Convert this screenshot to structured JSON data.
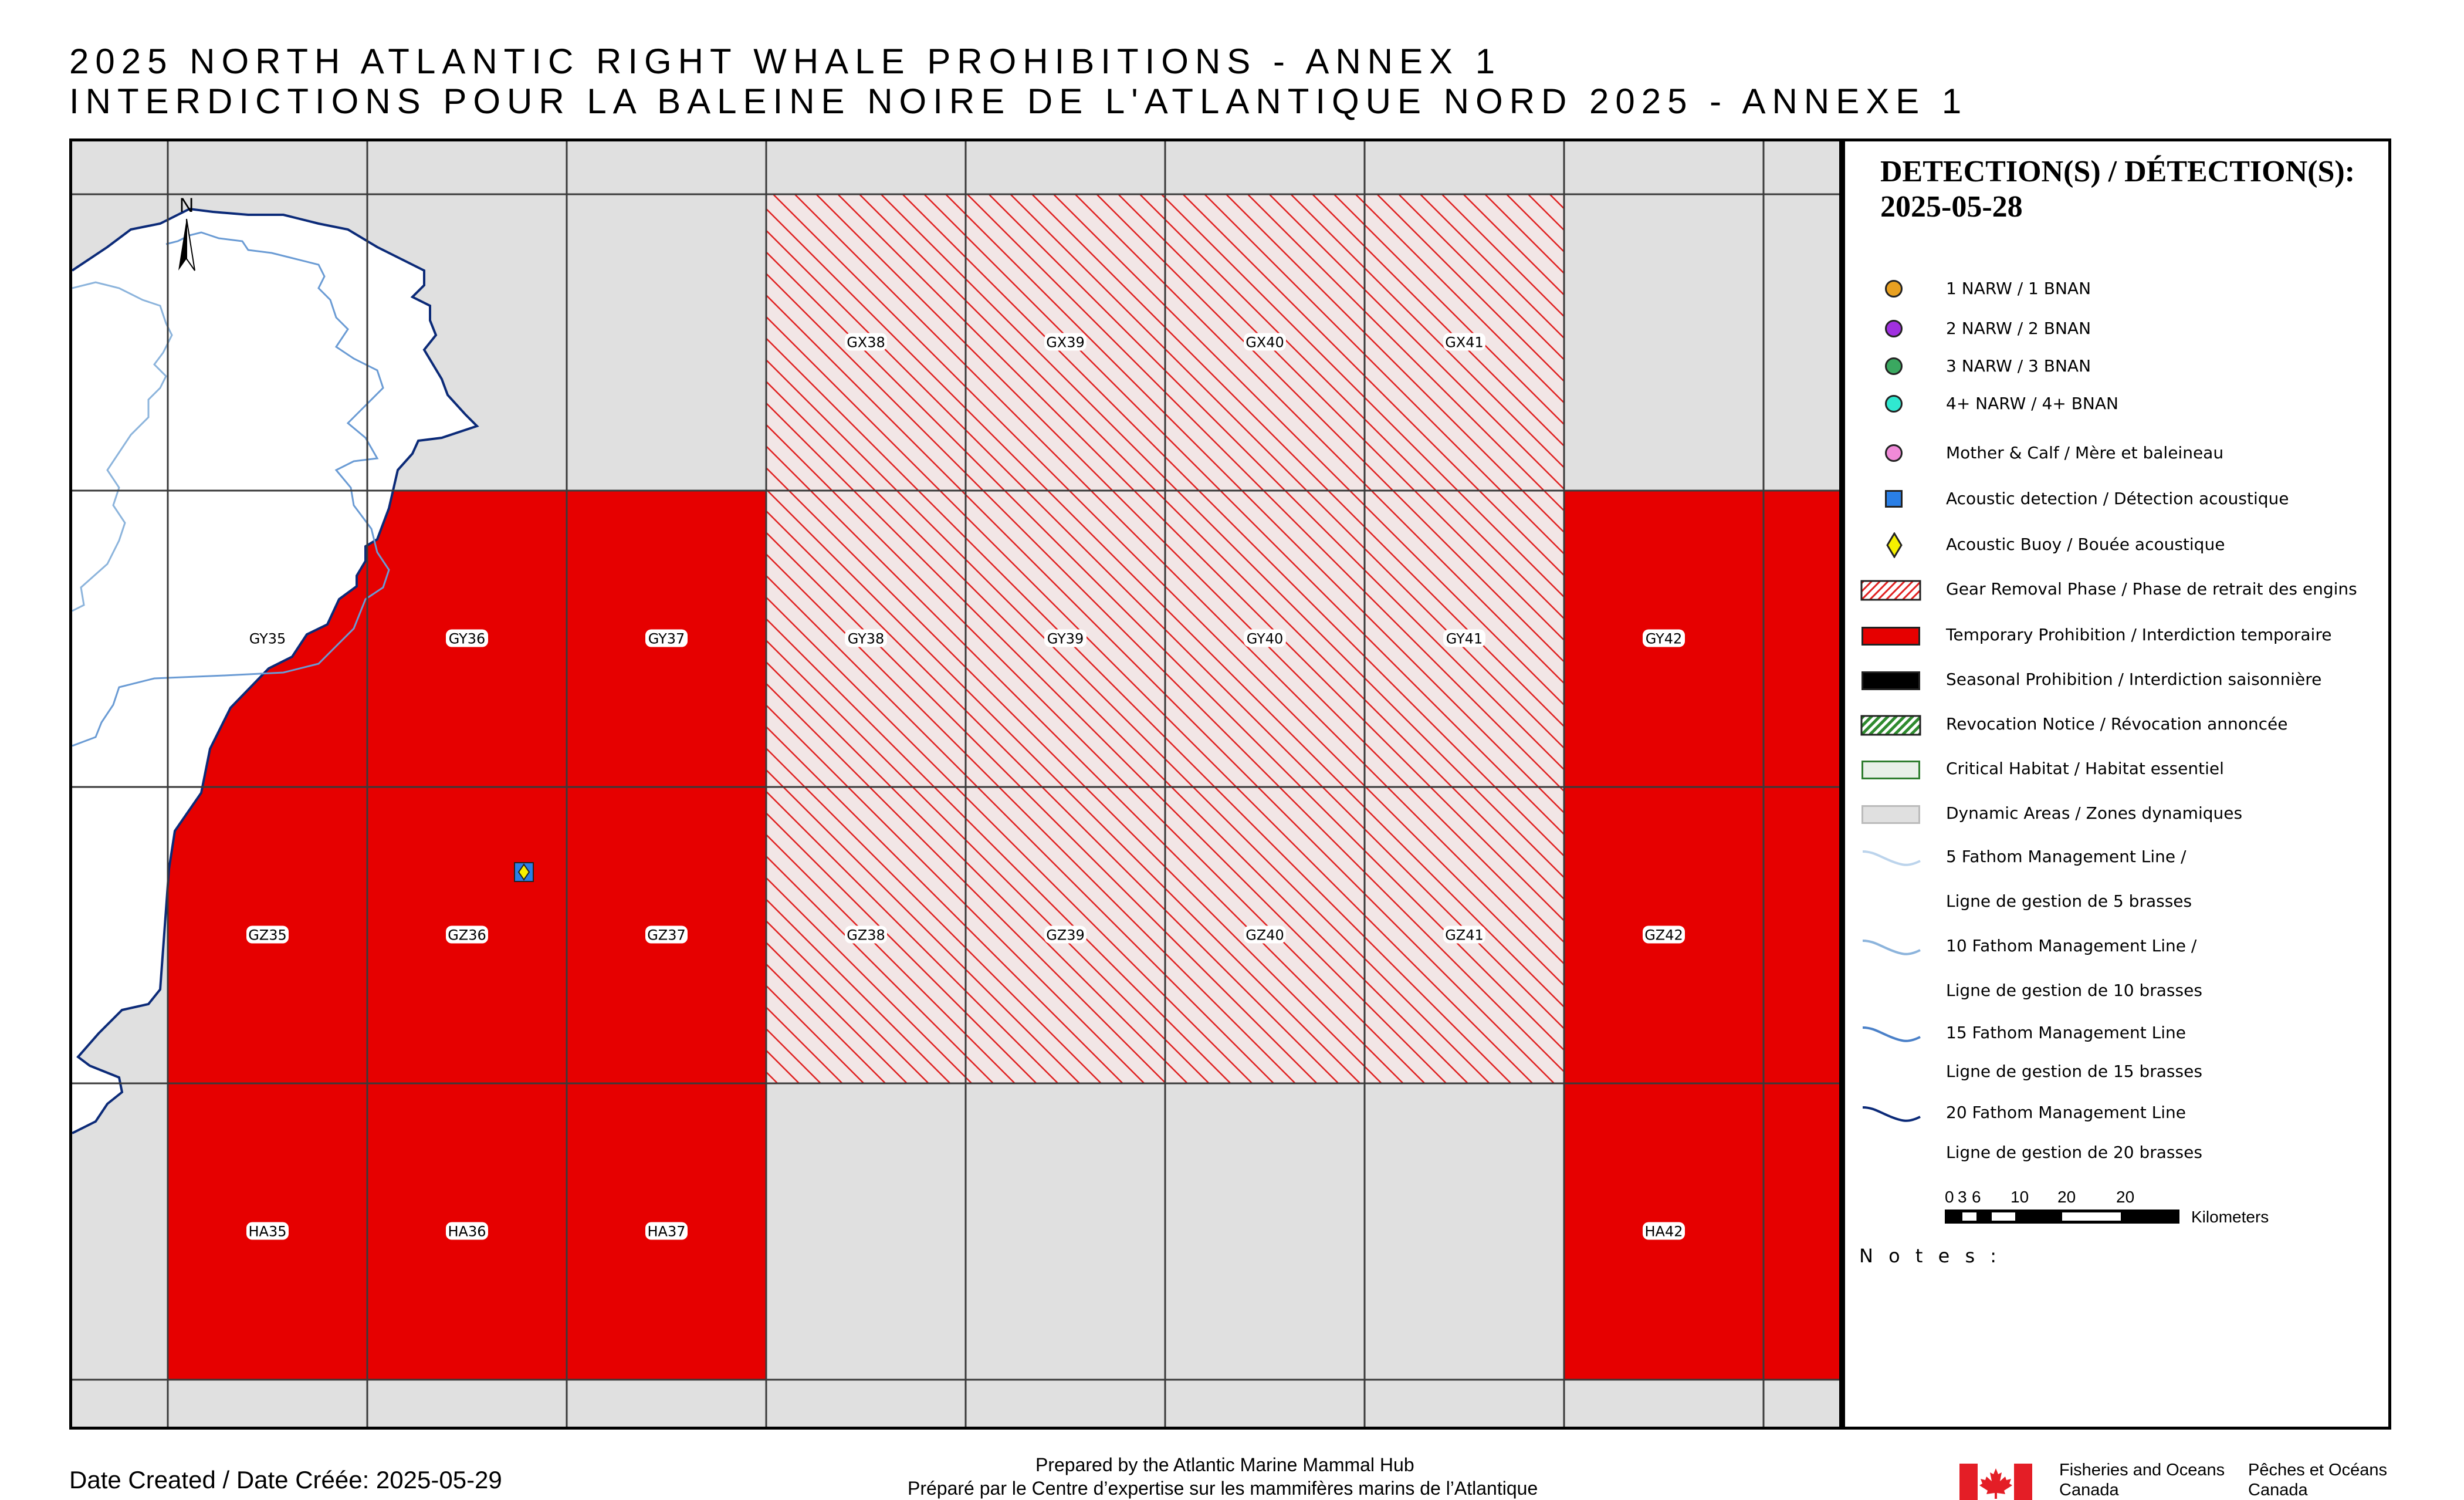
{
  "title": {
    "line1": "2025 NORTH ATLANTIC RIGHT WHALE PROHIBITIONS - ANNEX 1",
    "line2": "INTERDICTIONS POUR LA BALEINE NOIRE DE L'ATLANTIQUE NORD 2025 - ANNEXE 1"
  },
  "map": {
    "north_label": "N",
    "colors": {
      "background": "#e0e0e0",
      "temporary": "#e60000",
      "hatch": "#e02020",
      "grid": "#3a3a3a",
      "land": "#ffffff",
      "coast": "#0b2a78",
      "fathom": "#6a9bd4"
    },
    "cells": {
      "row_gx": [
        {
          "label": "GX38",
          "status": "gear_removal"
        },
        {
          "label": "GX39",
          "status": "gear_removal"
        },
        {
          "label": "GX40",
          "status": "gear_removal"
        },
        {
          "label": "GX41",
          "status": "gear_removal"
        }
      ],
      "row_gy": [
        {
          "label": "GY35",
          "status": "temporary"
        },
        {
          "label": "GY36",
          "status": "temporary"
        },
        {
          "label": "GY37",
          "status": "temporary"
        },
        {
          "label": "GY38",
          "status": "gear_removal"
        },
        {
          "label": "GY39",
          "status": "gear_removal"
        },
        {
          "label": "GY40",
          "status": "gear_removal"
        },
        {
          "label": "GY41",
          "status": "gear_removal"
        },
        {
          "label": "GY42",
          "status": "temporary"
        }
      ],
      "row_gz": [
        {
          "label": "GZ35",
          "status": "temporary"
        },
        {
          "label": "GZ36",
          "status": "temporary"
        },
        {
          "label": "GZ37",
          "status": "temporary"
        },
        {
          "label": "GZ38",
          "status": "gear_removal"
        },
        {
          "label": "GZ39",
          "status": "gear_removal"
        },
        {
          "label": "GZ40",
          "status": "gear_removal"
        },
        {
          "label": "GZ41",
          "status": "gear_removal"
        },
        {
          "label": "GZ42",
          "status": "temporary"
        }
      ],
      "row_ha": [
        {
          "label": "HA35",
          "status": "temporary"
        },
        {
          "label": "HA36",
          "status": "temporary"
        },
        {
          "label": "HA37",
          "status": "temporary"
        },
        {
          "label": "HA42",
          "status": "temporary"
        }
      ]
    },
    "acoustic_buoy_count": 1
  },
  "legend": {
    "heading_line1": "DETECTION(S) / DÉTECTION(S):",
    "heading_line2": "2025-05-28",
    "items": [
      {
        "label": "1 NARW / 1 BNAN",
        "symbol": "circle",
        "color": "#e8a020"
      },
      {
        "label": "2 NARW / 2 BNAN",
        "symbol": "circle",
        "color": "#a030e0"
      },
      {
        "label": "3 NARW / 3 BNAN",
        "symbol": "circle",
        "color": "#3aa860"
      },
      {
        "label": "4+ NARW / 4+ BNAN",
        "symbol": "circle",
        "color": "#30e8d0"
      },
      {
        "label": "Mother & Calf / Mère et baleineau",
        "symbol": "circle",
        "color": "#f08ad8"
      },
      {
        "label": "Acoustic detection / Détection acoustique",
        "symbol": "square",
        "color": "#2a7fe6"
      },
      {
        "label": "Acoustic Buoy / Bouée acoustique",
        "symbol": "diamond",
        "color": "#f5f000"
      },
      {
        "label": "Gear Removal Phase / Phase de retrait des engins",
        "symbol": "hatch-red",
        "color": "#e02020"
      },
      {
        "label": "Temporary Prohibition / Interdiction temporaire",
        "symbol": "fill",
        "color": "#e60000"
      },
      {
        "label": "Seasonal Prohibition / Interdiction saisonnière",
        "symbol": "fill",
        "color": "#000000"
      },
      {
        "label": "Revocation Notice / Révocation annoncée",
        "symbol": "hatch-green",
        "color": "#2e8b2e"
      },
      {
        "label": "Critical Habitat / Habitat essentiel",
        "symbol": "outline",
        "color": "#2e7d2e"
      },
      {
        "label": "Dynamic Areas / Zones dynamiques",
        "symbol": "fill",
        "color": "#e0e0e0"
      },
      {
        "label": "5 Fathom Management Line /",
        "symbol": "line",
        "color": "#bcd4ec"
      },
      {
        "label": "Ligne de gestion de 5 brasses",
        "symbol": "none",
        "color": ""
      },
      {
        "label": "10 Fathom Management Line /",
        "symbol": "line",
        "color": "#8cb4dc"
      },
      {
        "label": "Ligne de gestion de 10 brasses",
        "symbol": "none",
        "color": ""
      },
      {
        "label": "15 Fathom Management Line",
        "symbol": "line",
        "color": "#4a80c8"
      },
      {
        "label": "Ligne de gestion de 15 brasses",
        "symbol": "none",
        "color": ""
      },
      {
        "label": "20 Fathom Management Line",
        "symbol": "line",
        "color": "#0b2a78"
      },
      {
        "label": "Ligne de gestion de 20 brasses",
        "symbol": "none",
        "color": ""
      }
    ],
    "scale_ticks": [
      "0",
      "3",
      "6",
      "10",
      "20",
      "20"
    ],
    "scale_unit": "Kilometers",
    "notes_label": "N o t e s :"
  },
  "footer": {
    "date_created": "Date Created / Date Créée: 2025-05-29",
    "prepared_en": "Prepared by the Atlantic Marine Mammal Hub",
    "prepared_fr": "Préparé par le Centre d’expertise sur les mammifères marins de l’Atlantique",
    "dfo_en_line1": "Fisheries and Oceans",
    "dfo_en_line2": "Canada",
    "dfo_fr_line1": "Pêches et Océans",
    "dfo_fr_line2": "Canada"
  }
}
